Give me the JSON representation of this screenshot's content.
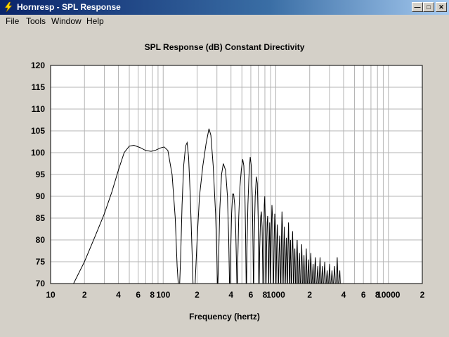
{
  "window": {
    "title": "Hornresp - SPL Response"
  },
  "menu": [
    {
      "label": "File"
    },
    {
      "label": "Tools"
    },
    {
      "label": "Window"
    },
    {
      "label": "Help"
    }
  ],
  "colors": {
    "grid": "#b4b4b4",
    "curve": "#000000",
    "plot_bg": "#ffffff",
    "window_bg": "#d4d0c8"
  },
  "chart_data": {
    "type": "line",
    "title": "SPL Response (dB)   Constant Directivity",
    "xlabel": "Frequency (hertz)",
    "ylabel": "",
    "xscale": "log",
    "xlim": [
      10,
      20000
    ],
    "ylim": [
      70,
      120
    ],
    "grid": true,
    "yticks": [
      "120",
      "115",
      "110",
      "105",
      "100",
      "95",
      "90",
      "85",
      "80",
      "75",
      "70"
    ],
    "xticks": [
      {
        "v": 10,
        "t": "10"
      },
      {
        "v": 20,
        "t": "2"
      },
      {
        "v": 40,
        "t": "4"
      },
      {
        "v": 60,
        "t": "6"
      },
      {
        "v": 80,
        "t": "8"
      },
      {
        "v": 100,
        "t": "100"
      },
      {
        "v": 200,
        "t": "2"
      },
      {
        "v": 400,
        "t": "4"
      },
      {
        "v": 600,
        "t": "6"
      },
      {
        "v": 800,
        "t": "8"
      },
      {
        "v": 1000,
        "t": "1000"
      },
      {
        "v": 2000,
        "t": "2"
      },
      {
        "v": 4000,
        "t": "4"
      },
      {
        "v": 6000,
        "t": "6"
      },
      {
        "v": 8000,
        "t": "8"
      },
      {
        "v": 10000,
        "t": "10000"
      },
      {
        "v": 20000,
        "t": "2"
      }
    ],
    "series": [
      {
        "points": [
          [
            16,
            70
          ],
          [
            20,
            75
          ],
          [
            25,
            81
          ],
          [
            30,
            86
          ],
          [
            35,
            91
          ],
          [
            40,
            96
          ],
          [
            45,
            100
          ],
          [
            50,
            101.5
          ],
          [
            55,
            101.7
          ],
          [
            62,
            101.2
          ],
          [
            70,
            100.5
          ],
          [
            78,
            100.3
          ],
          [
            86,
            100.6
          ],
          [
            95,
            101.1
          ],
          [
            102,
            101.3
          ],
          [
            110,
            100.5
          ],
          [
            120,
            95
          ],
          [
            128,
            85
          ],
          [
            133,
            74
          ],
          [
            136,
            70
          ],
          [
            140,
            70
          ],
          [
            143,
            76
          ],
          [
            147,
            88
          ],
          [
            152,
            97
          ],
          [
            158,
            101.5
          ],
          [
            163,
            102.3
          ],
          [
            168,
            99
          ],
          [
            174,
            90
          ],
          [
            180,
            78
          ],
          [
            184,
            70
          ],
          [
            192,
            70
          ],
          [
            200,
            80
          ],
          [
            210,
            90
          ],
          [
            225,
            97
          ],
          [
            240,
            102
          ],
          [
            255,
            105.5
          ],
          [
            265,
            104
          ],
          [
            278,
            97
          ],
          [
            292,
            86
          ],
          [
            300,
            76
          ],
          [
            303,
            70
          ],
          [
            306,
            70
          ],
          [
            310,
            75
          ],
          [
            318,
            87
          ],
          [
            330,
            95
          ],
          [
            342,
            97.5
          ],
          [
            358,
            96
          ],
          [
            372,
            90
          ],
          [
            382,
            80
          ],
          [
            388,
            70
          ],
          [
            393,
            70
          ],
          [
            398,
            78
          ],
          [
            405,
            86
          ],
          [
            414,
            90.5
          ],
          [
            422,
            90.5
          ],
          [
            432,
            88
          ],
          [
            441,
            82
          ],
          [
            448,
            74
          ],
          [
            451,
            70
          ],
          [
            456,
            70
          ],
          [
            460,
            76
          ],
          [
            468,
            85
          ],
          [
            480,
            92
          ],
          [
            494,
            96
          ],
          [
            508,
            98.5
          ],
          [
            520,
            97
          ],
          [
            532,
            90
          ],
          [
            540,
            80
          ],
          [
            545,
            70
          ],
          [
            550,
            70
          ],
          [
            555,
            78
          ],
          [
            565,
            88
          ],
          [
            578,
            95
          ],
          [
            593,
            99
          ],
          [
            606,
            97
          ],
          [
            618,
            90
          ],
          [
            628,
            78
          ],
          [
            632,
            70
          ],
          [
            637,
            70
          ],
          [
            643,
            80
          ],
          [
            656,
            90
          ],
          [
            672,
            94.5
          ],
          [
            685,
            93
          ],
          [
            697,
            85
          ],
          [
            705,
            75
          ],
          [
            708,
            70
          ],
          [
            712,
            70
          ],
          [
            720,
            78
          ],
          [
            732,
            85
          ],
          [
            744,
            86.5
          ],
          [
            756,
            83
          ],
          [
            766,
            72
          ],
          [
            768,
            70
          ],
          [
            775,
            70
          ],
          [
            782,
            80
          ],
          [
            790,
            88
          ],
          [
            798,
            90
          ],
          [
            806,
            85
          ],
          [
            813,
            74
          ],
          [
            815,
            70
          ],
          [
            820,
            70
          ],
          [
            828,
            78
          ],
          [
            838,
            84
          ],
          [
            847,
            85.5
          ],
          [
            855,
            80
          ],
          [
            862,
            70
          ],
          [
            866,
            70
          ],
          [
            874,
            78
          ],
          [
            882,
            84
          ],
          [
            890,
            80
          ],
          [
            896,
            70
          ],
          [
            900,
            70
          ],
          [
            912,
            82
          ],
          [
            924,
            88
          ],
          [
            936,
            85
          ],
          [
            945,
            73
          ],
          [
            948,
            70
          ],
          [
            955,
            70
          ],
          [
            967,
            80
          ],
          [
            978,
            86
          ],
          [
            990,
            82
          ],
          [
            998,
            70
          ],
          [
            1005,
            70
          ],
          [
            1018,
            78
          ],
          [
            1030,
            83.5
          ],
          [
            1042,
            79
          ],
          [
            1050,
            70
          ],
          [
            1058,
            70
          ],
          [
            1070,
            77
          ],
          [
            1082,
            81
          ],
          [
            1094,
            76
          ],
          [
            1100,
            70
          ],
          [
            1110,
            70
          ],
          [
            1122,
            80
          ],
          [
            1134,
            86.5
          ],
          [
            1146,
            83
          ],
          [
            1155,
            72
          ],
          [
            1158,
            70
          ],
          [
            1165,
            70
          ],
          [
            1177,
            78
          ],
          [
            1190,
            83
          ],
          [
            1200,
            78
          ],
          [
            1207,
            70
          ],
          [
            1215,
            70
          ],
          [
            1228,
            76
          ],
          [
            1240,
            80.5
          ],
          [
            1252,
            75
          ],
          [
            1258,
            70
          ],
          [
            1270,
            70
          ],
          [
            1282,
            78
          ],
          [
            1296,
            84
          ],
          [
            1308,
            79
          ],
          [
            1315,
            70
          ],
          [
            1325,
            70
          ],
          [
            1338,
            76
          ],
          [
            1350,
            80
          ],
          [
            1362,
            74
          ],
          [
            1368,
            70
          ],
          [
            1382,
            70
          ],
          [
            1395,
            77
          ],
          [
            1410,
            82
          ],
          [
            1424,
            77
          ],
          [
            1432,
            70
          ],
          [
            1445,
            70
          ],
          [
            1460,
            74
          ],
          [
            1475,
            78
          ],
          [
            1490,
            73
          ],
          [
            1496,
            70
          ],
          [
            1515,
            70
          ],
          [
            1530,
            76
          ],
          [
            1548,
            80
          ],
          [
            1563,
            75
          ],
          [
            1570,
            70
          ],
          [
            1590,
            70
          ],
          [
            1605,
            74
          ],
          [
            1622,
            77
          ],
          [
            1638,
            72
          ],
          [
            1643,
            70
          ],
          [
            1665,
            70
          ],
          [
            1682,
            75
          ],
          [
            1700,
            79
          ],
          [
            1716,
            74
          ],
          [
            1722,
            70
          ],
          [
            1745,
            70
          ],
          [
            1762,
            73
          ],
          [
            1780,
            76.5
          ],
          [
            1796,
            72
          ],
          [
            1800,
            70
          ],
          [
            1830,
            70
          ],
          [
            1848,
            74
          ],
          [
            1866,
            78
          ],
          [
            1884,
            73
          ],
          [
            1890,
            70
          ],
          [
            1915,
            70
          ],
          [
            1935,
            73
          ],
          [
            1955,
            75.5
          ],
          [
            1972,
            71
          ],
          [
            1975,
            70
          ],
          [
            2005,
            70
          ],
          [
            2026,
            74
          ],
          [
            2048,
            77
          ],
          [
            2068,
            72
          ],
          [
            2072,
            70
          ],
          [
            2100,
            70
          ],
          [
            2122,
            72.5
          ],
          [
            2144,
            74.5
          ],
          [
            2164,
            71
          ],
          [
            2168,
            70
          ],
          [
            2200,
            70
          ],
          [
            2224,
            74
          ],
          [
            2248,
            76
          ],
          [
            2270,
            72
          ],
          [
            2274,
            70
          ],
          [
            2310,
            70
          ],
          [
            2335,
            72
          ],
          [
            2360,
            74
          ],
          [
            2382,
            71
          ],
          [
            2385,
            70
          ],
          [
            2420,
            70
          ],
          [
            2446,
            73
          ],
          [
            2472,
            76
          ],
          [
            2496,
            72
          ],
          [
            2500,
            70
          ],
          [
            2540,
            70
          ],
          [
            2568,
            72
          ],
          [
            2596,
            74
          ],
          [
            2620,
            70.5
          ],
          [
            2622,
            70
          ],
          [
            2665,
            70
          ],
          [
            2694,
            73
          ],
          [
            2722,
            75
          ],
          [
            2748,
            71
          ],
          [
            2752,
            70
          ],
          [
            2800,
            70
          ],
          [
            2830,
            71.5
          ],
          [
            2860,
            73
          ],
          [
            2888,
            70.5
          ],
          [
            2890,
            70
          ],
          [
            2940,
            70
          ],
          [
            2972,
            72
          ],
          [
            3004,
            74.5
          ],
          [
            3034,
            71
          ],
          [
            3038,
            70
          ],
          [
            3090,
            70
          ],
          [
            3124,
            71.5
          ],
          [
            3158,
            73
          ],
          [
            3190,
            70.5
          ],
          [
            3192,
            70
          ],
          [
            3250,
            70
          ],
          [
            3290,
            72
          ],
          [
            3330,
            74
          ],
          [
            3366,
            71
          ],
          [
            3370,
            70
          ],
          [
            3430,
            70
          ],
          [
            3470,
            72
          ],
          [
            3510,
            76
          ],
          [
            3550,
            72
          ],
          [
            3560,
            70
          ],
          [
            3620,
            70
          ],
          [
            3660,
            71.5
          ],
          [
            3700,
            73
          ],
          [
            3740,
            70
          ]
        ]
      }
    ]
  }
}
